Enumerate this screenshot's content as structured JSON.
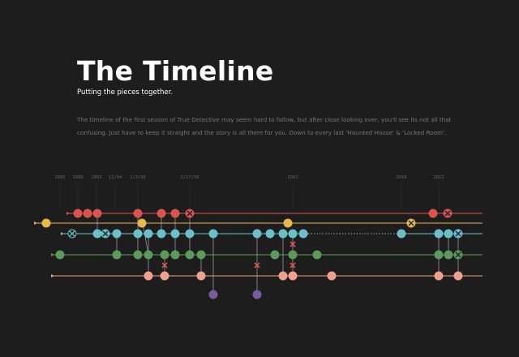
{
  "header": {
    "title": "The Timeline",
    "subtitle": "Putting the pieces together."
  },
  "intro": "The timeline of the first season of True Detective may seem hard to follow, but after close looking over, you'll see its not all that confusing. Just have to keep it straight and the story is all there for you. Down to every last 'Haunted House' & 'Locked Room'.",
  "timeline": {
    "labels": [
      "1985",
      "1990",
      "1993",
      "11/94",
      "1/3/95",
      "3/17/95",
      "2002",
      "2010",
      "2012"
    ]
  }
}
